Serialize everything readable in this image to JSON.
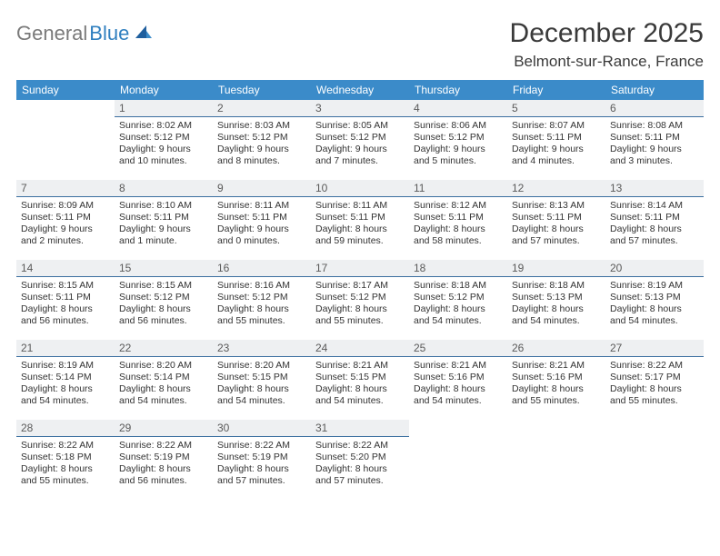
{
  "brand": {
    "part1": "General",
    "part2": "Blue"
  },
  "title": "December 2025",
  "location": "Belmont-sur-Rance, France",
  "colors": {
    "header_bg": "#3b8bc9",
    "header_text": "#ffffff",
    "daynum_bg": "#eef0f2",
    "daynum_border": "#3b6fa0",
    "body_text": "#333333",
    "logo_gray": "#7a7a7a",
    "logo_blue": "#2f7fbf"
  },
  "weekdays": [
    "Sunday",
    "Monday",
    "Tuesday",
    "Wednesday",
    "Thursday",
    "Friday",
    "Saturday"
  ],
  "weeks": [
    [
      null,
      {
        "n": "1",
        "sr": "Sunrise: 8:02 AM",
        "ss": "Sunset: 5:12 PM",
        "d1": "Daylight: 9 hours",
        "d2": "and 10 minutes."
      },
      {
        "n": "2",
        "sr": "Sunrise: 8:03 AM",
        "ss": "Sunset: 5:12 PM",
        "d1": "Daylight: 9 hours",
        "d2": "and 8 minutes."
      },
      {
        "n": "3",
        "sr": "Sunrise: 8:05 AM",
        "ss": "Sunset: 5:12 PM",
        "d1": "Daylight: 9 hours",
        "d2": "and 7 minutes."
      },
      {
        "n": "4",
        "sr": "Sunrise: 8:06 AM",
        "ss": "Sunset: 5:12 PM",
        "d1": "Daylight: 9 hours",
        "d2": "and 5 minutes."
      },
      {
        "n": "5",
        "sr": "Sunrise: 8:07 AM",
        "ss": "Sunset: 5:11 PM",
        "d1": "Daylight: 9 hours",
        "d2": "and 4 minutes."
      },
      {
        "n": "6",
        "sr": "Sunrise: 8:08 AM",
        "ss": "Sunset: 5:11 PM",
        "d1": "Daylight: 9 hours",
        "d2": "and 3 minutes."
      }
    ],
    [
      {
        "n": "7",
        "sr": "Sunrise: 8:09 AM",
        "ss": "Sunset: 5:11 PM",
        "d1": "Daylight: 9 hours",
        "d2": "and 2 minutes."
      },
      {
        "n": "8",
        "sr": "Sunrise: 8:10 AM",
        "ss": "Sunset: 5:11 PM",
        "d1": "Daylight: 9 hours",
        "d2": "and 1 minute."
      },
      {
        "n": "9",
        "sr": "Sunrise: 8:11 AM",
        "ss": "Sunset: 5:11 PM",
        "d1": "Daylight: 9 hours",
        "d2": "and 0 minutes."
      },
      {
        "n": "10",
        "sr": "Sunrise: 8:11 AM",
        "ss": "Sunset: 5:11 PM",
        "d1": "Daylight: 8 hours",
        "d2": "and 59 minutes."
      },
      {
        "n": "11",
        "sr": "Sunrise: 8:12 AM",
        "ss": "Sunset: 5:11 PM",
        "d1": "Daylight: 8 hours",
        "d2": "and 58 minutes."
      },
      {
        "n": "12",
        "sr": "Sunrise: 8:13 AM",
        "ss": "Sunset: 5:11 PM",
        "d1": "Daylight: 8 hours",
        "d2": "and 57 minutes."
      },
      {
        "n": "13",
        "sr": "Sunrise: 8:14 AM",
        "ss": "Sunset: 5:11 PM",
        "d1": "Daylight: 8 hours",
        "d2": "and 57 minutes."
      }
    ],
    [
      {
        "n": "14",
        "sr": "Sunrise: 8:15 AM",
        "ss": "Sunset: 5:11 PM",
        "d1": "Daylight: 8 hours",
        "d2": "and 56 minutes."
      },
      {
        "n": "15",
        "sr": "Sunrise: 8:15 AM",
        "ss": "Sunset: 5:12 PM",
        "d1": "Daylight: 8 hours",
        "d2": "and 56 minutes."
      },
      {
        "n": "16",
        "sr": "Sunrise: 8:16 AM",
        "ss": "Sunset: 5:12 PM",
        "d1": "Daylight: 8 hours",
        "d2": "and 55 minutes."
      },
      {
        "n": "17",
        "sr": "Sunrise: 8:17 AM",
        "ss": "Sunset: 5:12 PM",
        "d1": "Daylight: 8 hours",
        "d2": "and 55 minutes."
      },
      {
        "n": "18",
        "sr": "Sunrise: 8:18 AM",
        "ss": "Sunset: 5:12 PM",
        "d1": "Daylight: 8 hours",
        "d2": "and 54 minutes."
      },
      {
        "n": "19",
        "sr": "Sunrise: 8:18 AM",
        "ss": "Sunset: 5:13 PM",
        "d1": "Daylight: 8 hours",
        "d2": "and 54 minutes."
      },
      {
        "n": "20",
        "sr": "Sunrise: 8:19 AM",
        "ss": "Sunset: 5:13 PM",
        "d1": "Daylight: 8 hours",
        "d2": "and 54 minutes."
      }
    ],
    [
      {
        "n": "21",
        "sr": "Sunrise: 8:19 AM",
        "ss": "Sunset: 5:14 PM",
        "d1": "Daylight: 8 hours",
        "d2": "and 54 minutes."
      },
      {
        "n": "22",
        "sr": "Sunrise: 8:20 AM",
        "ss": "Sunset: 5:14 PM",
        "d1": "Daylight: 8 hours",
        "d2": "and 54 minutes."
      },
      {
        "n": "23",
        "sr": "Sunrise: 8:20 AM",
        "ss": "Sunset: 5:15 PM",
        "d1": "Daylight: 8 hours",
        "d2": "and 54 minutes."
      },
      {
        "n": "24",
        "sr": "Sunrise: 8:21 AM",
        "ss": "Sunset: 5:15 PM",
        "d1": "Daylight: 8 hours",
        "d2": "and 54 minutes."
      },
      {
        "n": "25",
        "sr": "Sunrise: 8:21 AM",
        "ss": "Sunset: 5:16 PM",
        "d1": "Daylight: 8 hours",
        "d2": "and 54 minutes."
      },
      {
        "n": "26",
        "sr": "Sunrise: 8:21 AM",
        "ss": "Sunset: 5:16 PM",
        "d1": "Daylight: 8 hours",
        "d2": "and 55 minutes."
      },
      {
        "n": "27",
        "sr": "Sunrise: 8:22 AM",
        "ss": "Sunset: 5:17 PM",
        "d1": "Daylight: 8 hours",
        "d2": "and 55 minutes."
      }
    ],
    [
      {
        "n": "28",
        "sr": "Sunrise: 8:22 AM",
        "ss": "Sunset: 5:18 PM",
        "d1": "Daylight: 8 hours",
        "d2": "and 55 minutes."
      },
      {
        "n": "29",
        "sr": "Sunrise: 8:22 AM",
        "ss": "Sunset: 5:19 PM",
        "d1": "Daylight: 8 hours",
        "d2": "and 56 minutes."
      },
      {
        "n": "30",
        "sr": "Sunrise: 8:22 AM",
        "ss": "Sunset: 5:19 PM",
        "d1": "Daylight: 8 hours",
        "d2": "and 57 minutes."
      },
      {
        "n": "31",
        "sr": "Sunrise: 8:22 AM",
        "ss": "Sunset: 5:20 PM",
        "d1": "Daylight: 8 hours",
        "d2": "and 57 minutes."
      },
      null,
      null,
      null
    ]
  ]
}
